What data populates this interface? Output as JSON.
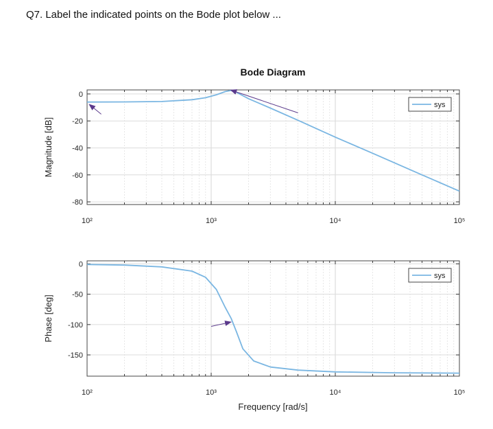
{
  "question": "Q7. Label the indicated points on the Bode plot below ...",
  "chart_data": {
    "type": "line",
    "title": "Bode Diagram",
    "xlabel": "Frequency [rad/s]",
    "xscale": "log",
    "xlim": [
      100,
      100000
    ],
    "x_tick_labels": [
      "10²",
      "10³",
      "10⁴",
      "10⁵"
    ],
    "x_tick_values": [
      100,
      1000,
      10000,
      100000
    ],
    "grid": true,
    "line_color": "#7ab6e2",
    "arrow_color": "#5b3a8c",
    "panels": [
      {
        "name": "magnitude",
        "ylabel": "Magnitude [dB]",
        "ylim": [
          -82,
          3
        ],
        "y_ticks": [
          0,
          -20,
          -40,
          -60,
          -80
        ],
        "legend": "sys",
        "legend_position": "top-right",
        "series": [
          {
            "name": "sys",
            "x": [
              100,
              200,
              400,
              700,
              900,
              1100,
              1300,
              1450,
              1600,
              2000,
              3000,
              5000,
              10000,
              20000,
              50000,
              100000
            ],
            "y": [
              -6,
              -5.9,
              -5.6,
              -4.3,
              -2.8,
              -0.6,
              1.8,
              2.6,
              1.2,
              -3.5,
              -10.5,
              -19.5,
              -32,
              -44,
              -60,
              -72
            ]
          }
        ],
        "annotations": [
          {
            "type": "arrow",
            "from": [
              130,
              -15
            ],
            "to": [
              105,
              -8
            ]
          },
          {
            "type": "arrow",
            "from": [
              5000,
              -14
            ],
            "to": [
              1450,
              2.8
            ]
          }
        ]
      },
      {
        "name": "phase",
        "ylabel": "Phase [deg]",
        "ylim": [
          -185,
          5
        ],
        "y_ticks": [
          0,
          -50,
          -100,
          -150
        ],
        "legend": "sys",
        "legend_position": "top-right",
        "series": [
          {
            "name": "sys",
            "x": [
              100,
              200,
              400,
              700,
              900,
              1100,
              1300,
              1450,
              1600,
              1800,
              2200,
              3000,
              5000,
              10000,
              30000,
              100000
            ],
            "y": [
              -1,
              -2,
              -5,
              -12,
              -22,
              -42,
              -72,
              -90,
              -112,
              -140,
              -160,
              -170,
              -175,
              -178,
              -179.5,
              -180
            ]
          }
        ],
        "annotations": [
          {
            "type": "arrow",
            "from": [
              1000,
              -103
            ],
            "to": [
              1430,
              -96
            ]
          }
        ]
      }
    ]
  }
}
